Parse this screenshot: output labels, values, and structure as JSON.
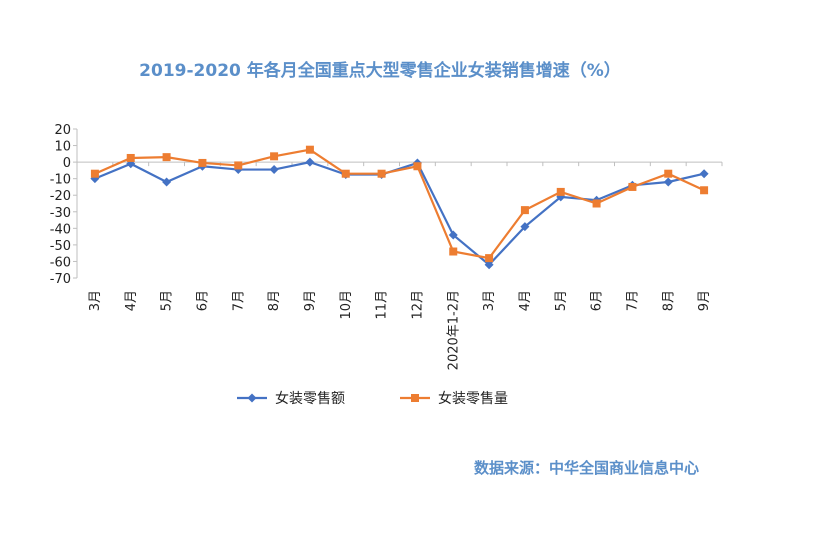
{
  "colors": {
    "series1": "#4472c4",
    "series2": "#ed7d31",
    "axis": "#bfbfbf",
    "title": "#5b8fc9"
  },
  "source": "数据来源：中华全国商业信息中心",
  "chart_data": {
    "type": "line",
    "title": "2019-2020 年各月全国重点大型零售企业女装销售增速（%）",
    "xlabel": "",
    "ylabel": "",
    "ylim": [
      -70,
      20
    ],
    "yticks": [
      20,
      10,
      0,
      -10,
      -20,
      -30,
      -40,
      -50,
      -60,
      -70
    ],
    "grid": false,
    "legend": "bottom",
    "categories": [
      "3月",
      "4月",
      "5月",
      "6月",
      "7月",
      "8月",
      "9月",
      "10月",
      "11月",
      "12月",
      "2020年1-2月",
      "3月",
      "4月",
      "5月",
      "6月",
      "7月",
      "8月",
      "9月"
    ],
    "series": [
      {
        "name": "女装零售额",
        "marker": "diamond",
        "values": [
          -10,
          -1,
          -12,
          -2.5,
          -4.5,
          -4.5,
          0,
          -7.5,
          -7.5,
          -0.5,
          -44,
          -62,
          -39,
          -21,
          -23,
          -14,
          -12,
          -7
        ]
      },
      {
        "name": "女装零售量",
        "marker": "square",
        "values": [
          -7,
          2.5,
          3,
          -0.5,
          -2,
          3.5,
          7.5,
          -7,
          -7,
          -2.5,
          -54,
          -58,
          -29,
          -18,
          -25,
          -15,
          -7,
          -17
        ]
      }
    ]
  }
}
